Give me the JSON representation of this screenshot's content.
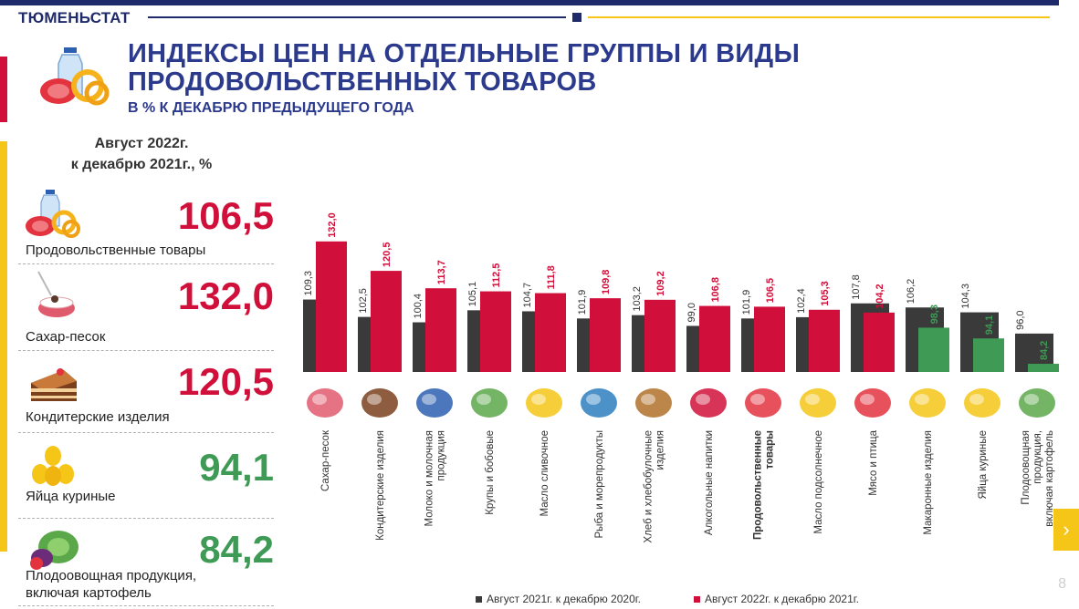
{
  "header": {
    "org": "ТЮМЕНЬСТАТ",
    "title_line1": "ИНДЕКСЫ ЦЕН НА ОТДЕЛЬНЫЕ ГРУППЫ И ВИДЫ",
    "title_line2": "ПРОДОВОЛЬСТВЕННЫХ ТОВАРОВ",
    "subtitle": "В % К ДЕКАБРЮ ПРЕДЫДУЩЕГО ГОДА",
    "icon": "food-basket-icon"
  },
  "left_panel": {
    "heading_line1": "Август 2022г.",
    "heading_line2": "к декабрю 2021г., %",
    "items": [
      {
        "value": "106,5",
        "label": "Продовольственные товары",
        "color": "#d0103a",
        "icon": "food-basket-icon"
      },
      {
        "value": "132,0",
        "label": "Сахар-песок",
        "color": "#d0103a",
        "icon": "sugar-bowl-icon"
      },
      {
        "value": "120,5",
        "label": "Кондитерские изделия",
        "color": "#d0103a",
        "icon": "cake-icon"
      },
      {
        "value": "94,1",
        "label": "Яйца куриные",
        "color": "#3f9a55",
        "icon": "eggs-icon"
      },
      {
        "value": "84,2",
        "label_line1": "Плодоовощная продукция,",
        "label_line2": "включая картофель",
        "color": "#3f9a55",
        "icon": "vegetables-icon"
      }
    ]
  },
  "chart_data": {
    "type": "bar",
    "categories": [
      [
        "Сахар-песок"
      ],
      [
        "Кондитерские изделия"
      ],
      [
        "Молоко и молочная",
        "продукция"
      ],
      [
        "Крупы и бобовые"
      ],
      [
        "Масло сливочное"
      ],
      [
        "Рыба и морепродукты"
      ],
      [
        "Хлеб и хлебобулочные",
        "изделия"
      ],
      [
        "Алкогольные напитки"
      ],
      [
        "Продовольственные",
        "товары"
      ],
      [
        "Масло подсолнечное"
      ],
      [
        "Мясо и птица"
      ],
      [
        "Макаронные изделия"
      ],
      [
        "Яйца куриные"
      ],
      [
        "Плодоовощная",
        "продукция,",
        "включая картофель"
      ]
    ],
    "bold_category_index": 8,
    "series": [
      {
        "name": "Август 2021г. к декабрю 2020г.",
        "color": "#3a3a3a",
        "values": [
          109.3,
          102.5,
          100.4,
          105.1,
          104.7,
          101.9,
          103.2,
          99.0,
          101.9,
          102.4,
          107.8,
          106.2,
          104.3,
          96.0
        ],
        "labels": [
          "109,3",
          "102,5",
          "100,4",
          "105,1",
          "104,7",
          "101,9",
          "103,2",
          "99,0",
          "101,9",
          "102,4",
          "107,8",
          "106,2",
          "104,3",
          "96,0"
        ]
      },
      {
        "name": "Август 2022г. к декабрю 2021г.",
        "color": "#d0103a",
        "color_decrease": "#3f9a55",
        "values": [
          132.0,
          120.5,
          113.7,
          112.5,
          111.8,
          109.8,
          109.2,
          106.8,
          106.5,
          105.3,
          104.2,
          98.3,
          94.1,
          84.2
        ],
        "labels": [
          "132,0",
          "120,5",
          "113,7",
          "112,5",
          "111,8",
          "109,8",
          "109,2",
          "106,8",
          "106,5",
          "105,3",
          "104,2",
          "98,3",
          "94,1",
          "84,2"
        ]
      }
    ],
    "icons": [
      "sugar-bowl-icon",
      "cake-icon",
      "milk-icon",
      "beans-icon",
      "butter-icon",
      "fish-icon",
      "bread-icon",
      "alcohol-icon",
      "food-basket-icon",
      "sunflower-oil-icon",
      "meat-icon",
      "pasta-icon",
      "eggs-icon",
      "vegetables-icon"
    ],
    "ylim": [
      81,
      133
    ],
    "legend_position": "bottom",
    "grid": false
  },
  "page": {
    "number": "8",
    "next_arrow": "›"
  }
}
